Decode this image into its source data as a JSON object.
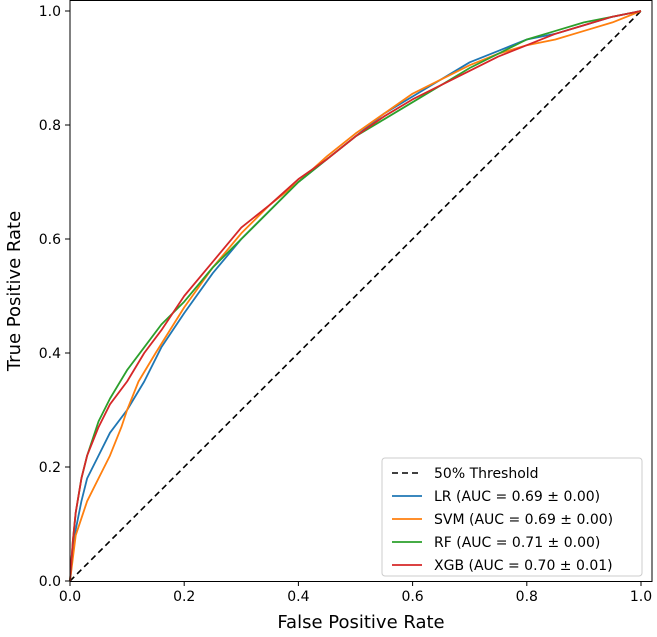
{
  "chart_data": {
    "type": "line",
    "title": "",
    "xlabel": "False Positive Rate",
    "ylabel": "True Positive Rate",
    "xlim": [
      0.0,
      1.0
    ],
    "ylim": [
      0.0,
      1.0
    ],
    "xticks": [
      0.0,
      0.2,
      0.4,
      0.6,
      0.8,
      1.0
    ],
    "yticks": [
      0.0,
      0.2,
      0.4,
      0.6,
      0.8,
      1.0
    ],
    "xtick_labels": [
      "0.0",
      "0.2",
      "0.4",
      "0.6",
      "0.8",
      "1.0"
    ],
    "ytick_labels": [
      "0.0",
      "0.2",
      "0.4",
      "0.6",
      "0.8",
      "1.0"
    ],
    "grid": false,
    "legend_position": "bottom-right",
    "series": [
      {
        "name": "50% Threshold",
        "color": "#000000",
        "dashed": true,
        "x": [
          0.0,
          1.0
        ],
        "y": [
          0.0,
          1.0
        ]
      },
      {
        "name": "LR (AUC = 0.69 ± 0.00)",
        "color": "#1f77b4",
        "dashed": false,
        "x": [
          0.0,
          0.005,
          0.01,
          0.02,
          0.03,
          0.05,
          0.07,
          0.1,
          0.13,
          0.16,
          0.2,
          0.25,
          0.3,
          0.35,
          0.4,
          0.45,
          0.5,
          0.55,
          0.6,
          0.65,
          0.7,
          0.75,
          0.8,
          0.85,
          0.9,
          0.95,
          1.0
        ],
        "y": [
          0.0,
          0.05,
          0.09,
          0.14,
          0.18,
          0.22,
          0.26,
          0.3,
          0.35,
          0.41,
          0.47,
          0.54,
          0.6,
          0.65,
          0.7,
          0.74,
          0.78,
          0.82,
          0.85,
          0.88,
          0.91,
          0.93,
          0.95,
          0.96,
          0.975,
          0.99,
          1.0
        ]
      },
      {
        "name": "SVM (AUC = 0.69 ± 0.00)",
        "color": "#ff7f0e",
        "dashed": false,
        "x": [
          0.0,
          0.005,
          0.01,
          0.02,
          0.03,
          0.05,
          0.07,
          0.09,
          0.1,
          0.12,
          0.15,
          0.2,
          0.25,
          0.3,
          0.35,
          0.4,
          0.45,
          0.5,
          0.55,
          0.6,
          0.65,
          0.7,
          0.75,
          0.8,
          0.85,
          0.9,
          0.95,
          1.0
        ],
        "y": [
          0.0,
          0.04,
          0.08,
          0.11,
          0.14,
          0.18,
          0.22,
          0.27,
          0.3,
          0.35,
          0.4,
          0.48,
          0.55,
          0.61,
          0.66,
          0.7,
          0.745,
          0.785,
          0.82,
          0.855,
          0.88,
          0.905,
          0.925,
          0.94,
          0.95,
          0.965,
          0.98,
          1.0
        ]
      },
      {
        "name": "RF (AUC = 0.71 ± 0.00)",
        "color": "#2ca02c",
        "dashed": false,
        "x": [
          0.0,
          0.005,
          0.01,
          0.02,
          0.03,
          0.05,
          0.07,
          0.1,
          0.13,
          0.16,
          0.2,
          0.25,
          0.3,
          0.35,
          0.4,
          0.45,
          0.5,
          0.55,
          0.6,
          0.65,
          0.7,
          0.75,
          0.8,
          0.85,
          0.9,
          0.95,
          1.0
        ],
        "y": [
          0.0,
          0.07,
          0.12,
          0.18,
          0.22,
          0.28,
          0.32,
          0.37,
          0.41,
          0.45,
          0.49,
          0.55,
          0.6,
          0.65,
          0.7,
          0.74,
          0.78,
          0.81,
          0.84,
          0.87,
          0.9,
          0.925,
          0.95,
          0.965,
          0.98,
          0.99,
          1.0
        ]
      },
      {
        "name": "XGB (AUC = 0.70 ± 0.01)",
        "color": "#d62728",
        "dashed": false,
        "x": [
          0.0,
          0.005,
          0.01,
          0.02,
          0.03,
          0.05,
          0.07,
          0.1,
          0.13,
          0.16,
          0.2,
          0.25,
          0.3,
          0.35,
          0.4,
          0.45,
          0.5,
          0.55,
          0.6,
          0.65,
          0.7,
          0.75,
          0.8,
          0.85,
          0.9,
          0.95,
          1.0
        ],
        "y": [
          0.0,
          0.07,
          0.12,
          0.18,
          0.22,
          0.27,
          0.31,
          0.35,
          0.4,
          0.44,
          0.5,
          0.56,
          0.62,
          0.66,
          0.705,
          0.74,
          0.78,
          0.815,
          0.845,
          0.87,
          0.895,
          0.92,
          0.94,
          0.96,
          0.975,
          0.99,
          1.0
        ]
      }
    ]
  }
}
